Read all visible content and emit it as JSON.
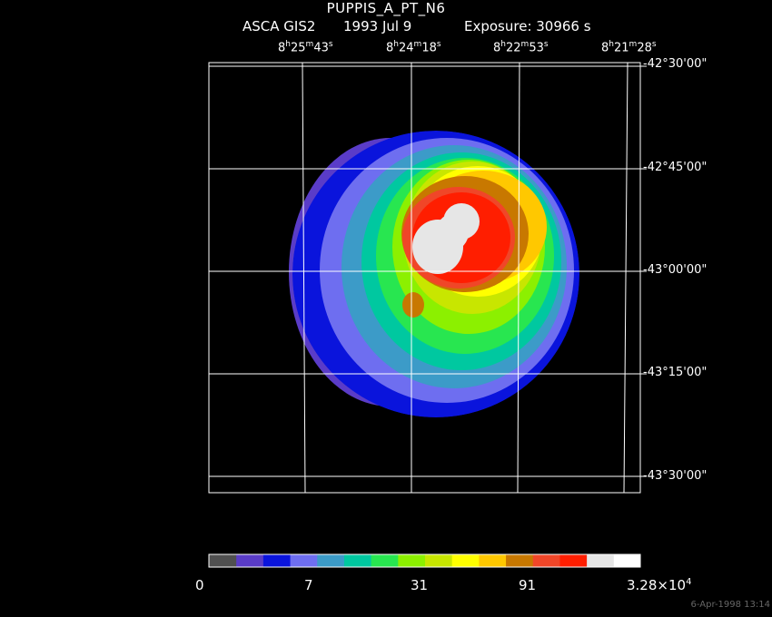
{
  "header": {
    "title": "PUPPIS_A_PT_N6",
    "instrument": "ASCA GIS2",
    "date": "1993 Jul  9",
    "exposure": "Exposure: 30966 s"
  },
  "ra_labels": [
    {
      "h": "8",
      "m": "25",
      "s": "43"
    },
    {
      "h": "8",
      "m": "24",
      "s": "18"
    },
    {
      "h": "8",
      "m": "22",
      "s": "53"
    },
    {
      "h": "8",
      "m": "21",
      "s": "28"
    }
  ],
  "dec_labels": [
    "-42°30'00\"",
    "-42°45'00\"",
    "-43°00'00\"",
    "-43°15'00\"",
    "-43°30'00\""
  ],
  "colorbar": {
    "colors": [
      "#505050",
      "#5a3cc8",
      "#0a14dc",
      "#6e6ef0",
      "#3c9bc8",
      "#00c8a0",
      "#28e650",
      "#8cf000",
      "#c8e600",
      "#ffff00",
      "#ffc800",
      "#c87800",
      "#f04628",
      "#ff1e00",
      "#e6e6e6",
      "#ffffff"
    ],
    "labels": [
      "0",
      "7",
      "31",
      "91",
      "3.28×10"
    ],
    "top_label_exp": "4"
  },
  "timestamp": "6-Apr-1998 13:14"
}
